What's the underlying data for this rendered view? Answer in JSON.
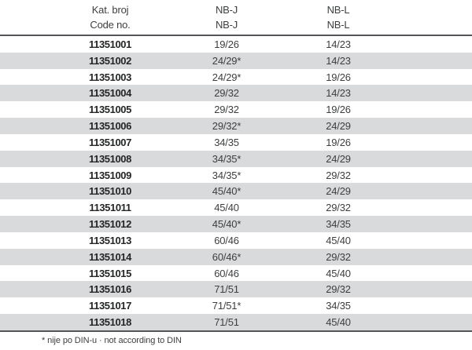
{
  "table": {
    "columns": [
      {
        "id": "code",
        "line1": "Kat. broj",
        "line2": "Code no."
      },
      {
        "id": "nbj",
        "line1": "NB-J",
        "line2": "NB-J"
      },
      {
        "id": "nbl",
        "line1": "NB-L",
        "line2": "NB-L"
      }
    ],
    "rows": [
      {
        "code": "11351001",
        "nbj": "19/26",
        "nbl": "14/23"
      },
      {
        "code": "11351002",
        "nbj": "24/29*",
        "nbl": "14/23"
      },
      {
        "code": "11351003",
        "nbj": "24/29*",
        "nbl": "19/26"
      },
      {
        "code": "11351004",
        "nbj": "29/32",
        "nbl": "14/23"
      },
      {
        "code": "11351005",
        "nbj": "29/32",
        "nbl": "19/26"
      },
      {
        "code": "11351006",
        "nbj": "29/32*",
        "nbl": "24/29"
      },
      {
        "code": "11351007",
        "nbj": "34/35",
        "nbl": "19/26"
      },
      {
        "code": "11351008",
        "nbj": "34/35*",
        "nbl": "24/29"
      },
      {
        "code": "11351009",
        "nbj": "34/35*",
        "nbl": "29/32"
      },
      {
        "code": "11351010",
        "nbj": "45/40*",
        "nbl": "24/29"
      },
      {
        "code": "11351011",
        "nbj": "45/40",
        "nbl": "29/32"
      },
      {
        "code": "11351012",
        "nbj": "45/40*",
        "nbl": "34/35"
      },
      {
        "code": "11351013",
        "nbj": "60/46",
        "nbl": "45/40"
      },
      {
        "code": "11351014",
        "nbj": "60/46*",
        "nbl": "29/32"
      },
      {
        "code": "11351015",
        "nbj": "60/46",
        "nbl": "45/40"
      },
      {
        "code": "11351016",
        "nbj": "71/51",
        "nbl": "29/32"
      },
      {
        "code": "11351017",
        "nbj": "71/51*",
        "nbl": "34/35"
      },
      {
        "code": "11351018",
        "nbj": "71/51",
        "nbl": "45/40"
      }
    ]
  },
  "footnote": "* nije po DIN-u · not according to DIN",
  "colors": {
    "stripe": "#d9dadb",
    "rule": "#54565a",
    "text": "#3d3e40",
    "code_text": "#242526"
  }
}
